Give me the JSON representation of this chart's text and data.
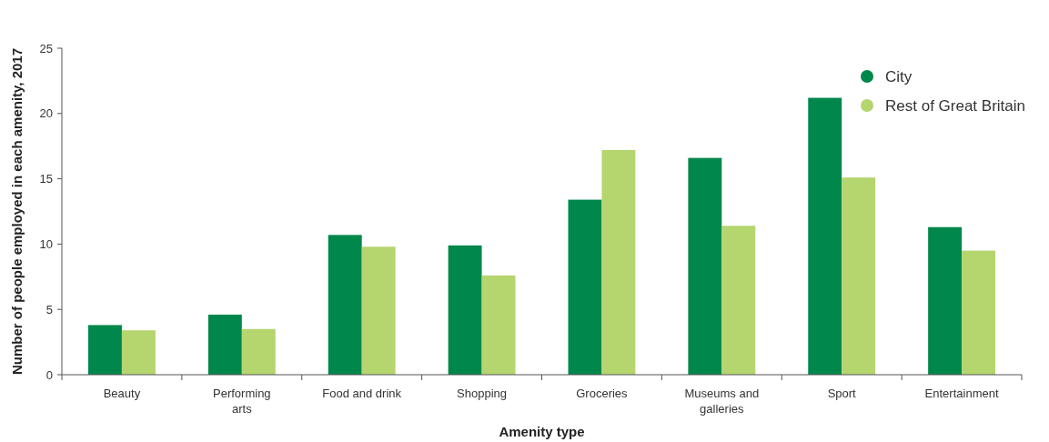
{
  "chart_data": {
    "type": "bar",
    "xlabel": "Amenity type",
    "ylabel": "Number of people employed in each amenity, 2017",
    "categories": [
      "Beauty",
      "Performing arts",
      "Food and drink",
      "Shopping",
      "Groceries",
      "Museums and galleries",
      "Sport",
      "Entertainment"
    ],
    "series": [
      {
        "name": "City",
        "color": "#00874b",
        "values": [
          3.8,
          4.6,
          10.7,
          9.9,
          13.4,
          16.6,
          21.2,
          11.3
        ]
      },
      {
        "name": "Rest of Great Britain",
        "color": "#b5d56f",
        "values": [
          3.4,
          3.5,
          9.8,
          7.6,
          17.2,
          11.4,
          15.1,
          9.5
        ]
      }
    ],
    "ylim": [
      0,
      25
    ],
    "yticks": [
      0,
      5,
      10,
      15,
      20,
      25
    ],
    "grid": false,
    "legend": "top right"
  }
}
